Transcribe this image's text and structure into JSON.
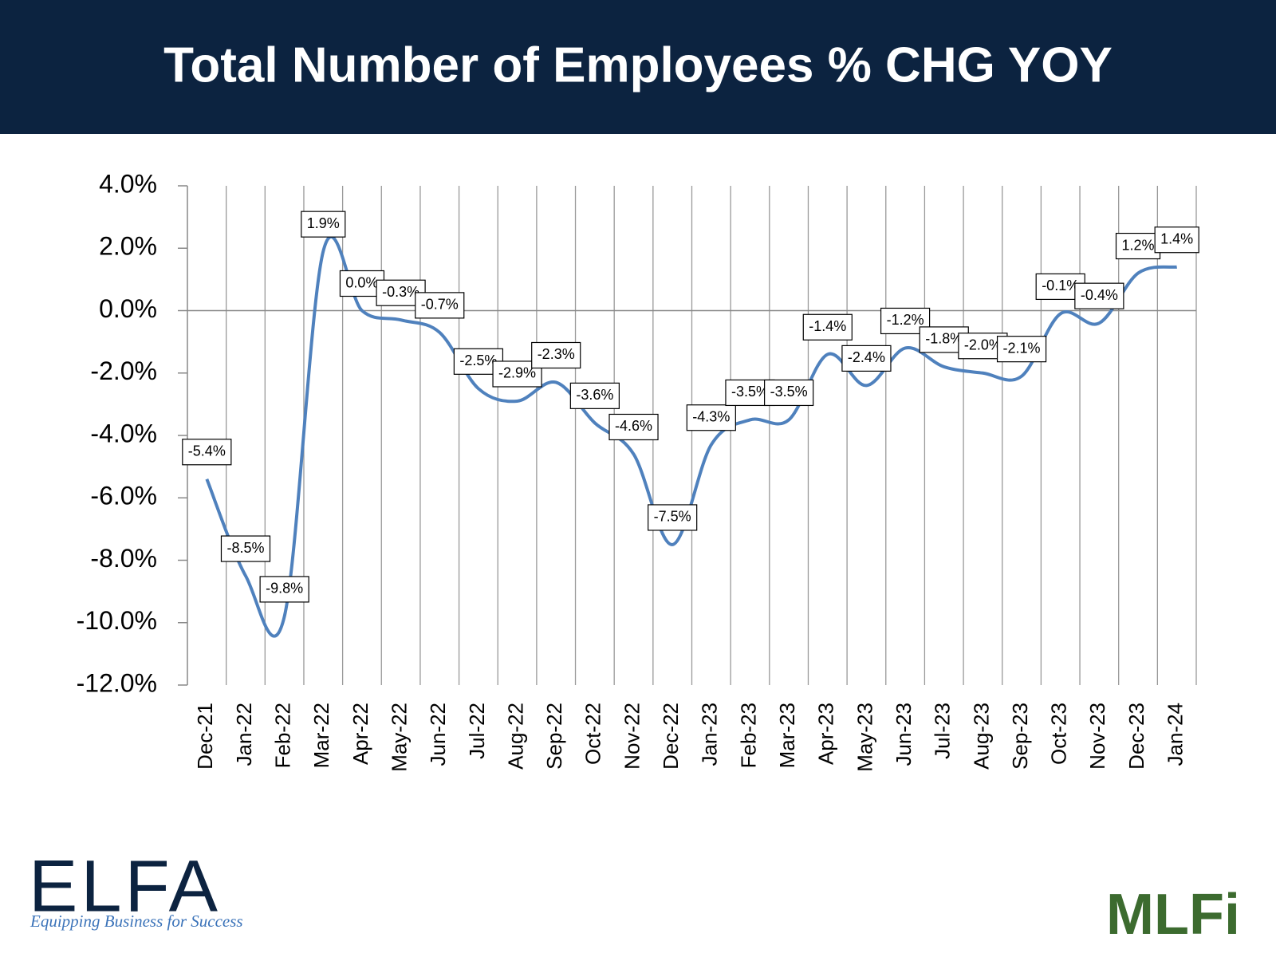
{
  "chart_data": {
    "type": "line",
    "title": "Total Number of Employees % CHG YOY",
    "categories": [
      "Dec-21",
      "Jan-22",
      "Feb-22",
      "Mar-22",
      "Apr-22",
      "May-22",
      "Jun-22",
      "Jul-22",
      "Aug-22",
      "Sep-22",
      "Oct-22",
      "Nov-22",
      "Dec-22",
      "Jan-23",
      "Feb-23",
      "Mar-23",
      "Apr-23",
      "May-23",
      "Jun-23",
      "Jul-23",
      "Aug-23",
      "Sep-23",
      "Oct-23",
      "Nov-23",
      "Dec-23",
      "Jan-24"
    ],
    "series": [
      {
        "color": "#4f81bd",
        "values": [
          -5.4,
          -8.5,
          -9.8,
          1.9,
          0.0,
          -0.3,
          -0.7,
          -2.5,
          -2.9,
          -2.3,
          -3.6,
          -4.6,
          -7.5,
          -4.3,
          -3.5,
          -3.5,
          -1.4,
          -2.4,
          -1.2,
          -1.8,
          -2.0,
          -2.1,
          -0.1,
          -0.4,
          1.2,
          1.4
        ],
        "value_labels": [
          "-5.4%",
          "-8.5%",
          "-9.8%",
          "1.9%",
          "0.0%",
          "-0.3%",
          "-0.7%",
          "-2.5%",
          "-2.9%",
          "-2.3%",
          "-3.6%",
          "-4.6%",
          "-7.5%",
          "-4.3%",
          "-3.5%",
          "-3.5%",
          "-1.4%",
          "-2.4%",
          "-1.2%",
          "-1.8%",
          "-2.0%",
          "-2.1%",
          "-0.1%",
          "-0.4%",
          "1.2%",
          "1.4%"
        ]
      }
    ],
    "ylim": [
      -12,
      4
    ],
    "yticks": [
      {
        "value": -12,
        "label": "-12.0%"
      },
      {
        "value": -10,
        "label": "-10.0%"
      },
      {
        "value": -8,
        "label": "-8.0%"
      },
      {
        "value": -6,
        "label": "-6.0%"
      },
      {
        "value": -4,
        "label": "-4.0%"
      },
      {
        "value": -2,
        "label": "-2.0%"
      },
      {
        "value": 0,
        "label": "0.0%"
      },
      {
        "value": 2,
        "label": "2.0%"
      },
      {
        "value": 4,
        "label": "4.0%"
      }
    ],
    "grid": true
  },
  "logos": {
    "elfa": "ELFA",
    "elfa_tagline": "Equipping Business for Success",
    "mlfi": "MLFi"
  }
}
